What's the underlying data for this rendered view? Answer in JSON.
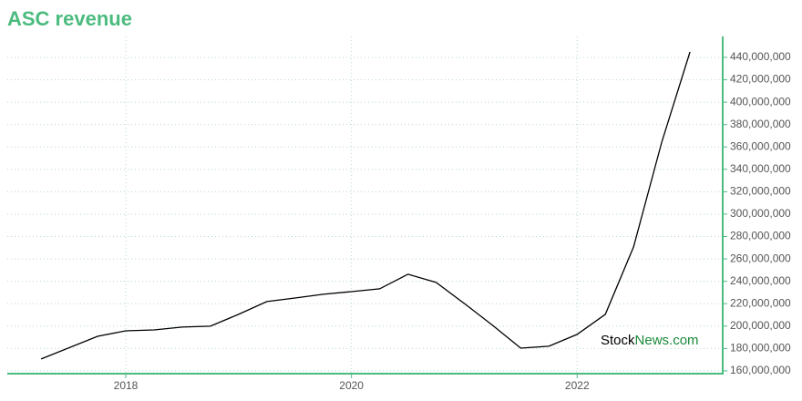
{
  "chart_data": {
    "type": "line",
    "title": "ASC revenue",
    "watermark": [
      "Stock",
      "News.com"
    ],
    "x": [
      2017.25,
      2017.75,
      2018.0,
      2018.25,
      2018.5,
      2018.75,
      2019.0,
      2019.25,
      2019.5,
      2019.75,
      2020.0,
      2020.25,
      2020.5,
      2020.75,
      2021.0,
      2021.25,
      2021.5,
      2021.75,
      2022.0,
      2022.25,
      2022.5,
      2022.75,
      2023.0
    ],
    "series": [
      {
        "name": "revenue",
        "color": "#000000",
        "values": [
          170600000,
          190900000,
          195800000,
          196600000,
          199100000,
          199900000,
          210500000,
          221900000,
          225100000,
          228400000,
          230800000,
          233300000,
          246300000,
          239000000,
          220200000,
          200700000,
          180300000,
          182000000,
          192600000,
          210500000,
          270700000,
          364300000,
          444900000
        ]
      }
    ],
    "xlim": [
      2016.95,
      2023.29
    ],
    "xticks": [
      2018,
      2020,
      2022
    ],
    "ylim": [
      157500000,
      458700000
    ],
    "yticks": [
      {
        "value": 160000000,
        "label": "160,000,000"
      },
      {
        "value": 180000000,
        "label": "180,000,000"
      },
      {
        "value": 200000000,
        "label": "200,000,000"
      },
      {
        "value": 220000000,
        "label": "220,000,000"
      },
      {
        "value": 240000000,
        "label": "240,000,000"
      },
      {
        "value": 260000000,
        "label": "260,000,000"
      },
      {
        "value": 280000000,
        "label": "280,000,000"
      },
      {
        "value": 300000000,
        "label": "300,000,000"
      },
      {
        "value": 320000000,
        "label": "320,000,000"
      },
      {
        "value": 340000000,
        "label": "340,000,000"
      },
      {
        "value": 360000000,
        "label": "360,000,000"
      },
      {
        "value": 380000000,
        "label": "380,000,000"
      },
      {
        "value": 400000000,
        "label": "400,000,000"
      },
      {
        "value": 420000000,
        "label": "420,000,000"
      },
      {
        "value": 440000000,
        "label": "440,000,000"
      }
    ],
    "grid": true,
    "axis_color": "#4cbb7f"
  }
}
